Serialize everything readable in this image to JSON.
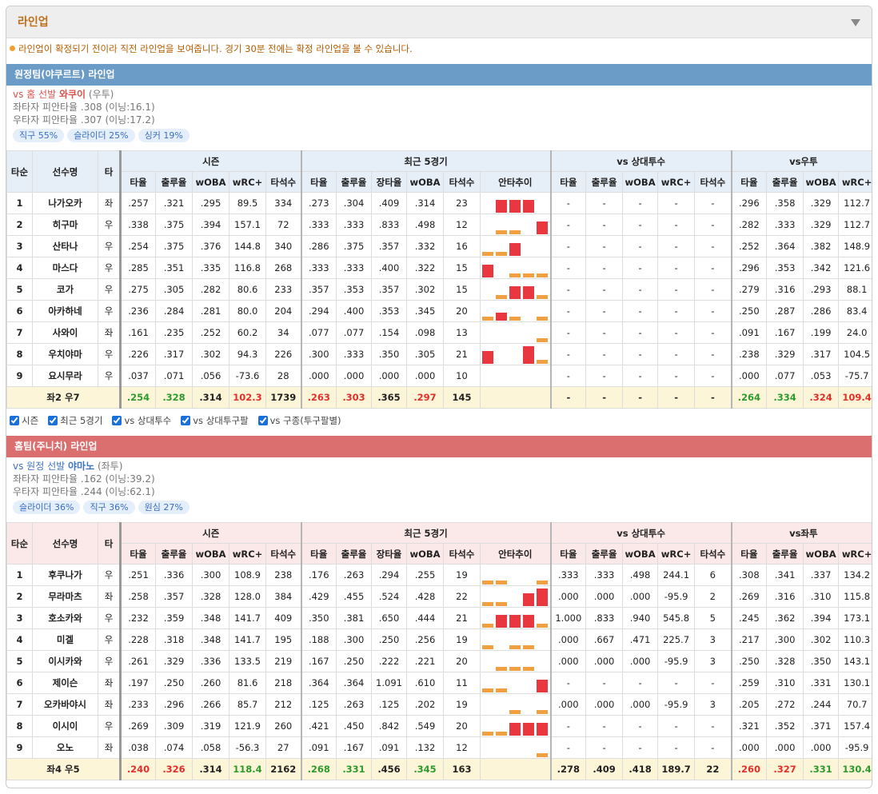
{
  "header": {
    "title": "라인업"
  },
  "notice": "라인업이 확정되기 전이라 직전 라인업을 보여줍니다. 경기 30분 전에는 확정 라인업을 볼 수 있습니다.",
  "filters": [
    "시즌",
    "최근 5경기",
    "vs 상대투수",
    "vs 상대투구팔",
    "vs 구종(투구팔별)"
  ],
  "teams": [
    {
      "title": "원정팀(야쿠르트) 라인업",
      "bar_color": "#6b9bc7",
      "head_bg": "#e6eef7",
      "pitcher": {
        "prefix": "vs 홈 선발",
        "name": "와쿠이",
        "hand": "(우투)",
        "color": "#d9534f"
      },
      "stats": [
        "좌타자 피안타율 .308 (이닝:16.1)",
        "우타자 피안타율 .307 (이닝:17.2)"
      ],
      "pitches": [
        "직구 55%",
        "슬라이더 25%",
        "싱커 19%"
      ],
      "table": {
        "fixed_headers": [
          "타순",
          "선수명",
          "타"
        ],
        "groups": [
          "시즌",
          "최근 5경기",
          "vs 상대투수",
          "vs우투"
        ],
        "columns": [
          [
            "타율",
            "출루율",
            "wOBA",
            "wRC+",
            "타석수"
          ],
          [
            "타율",
            "출루율",
            "장타율",
            "wOBA",
            "타석수",
            "안타추이"
          ],
          [
            "타율",
            "출루율",
            "wOBA",
            "wRC+",
            "타석수"
          ],
          [
            "타율",
            "출루율",
            "wOBA",
            "wRC+"
          ]
        ],
        "rows": [
          [
            "1",
            "나가오카",
            "좌",
            ".257",
            ".321",
            ".295",
            "89.5",
            "334",
            ".273",
            ".304",
            ".409",
            ".314",
            "23",
            "-",
            "-",
            "-",
            "-",
            "-",
            ".296",
            ".358",
            ".329",
            "112.7"
          ],
          [
            "2",
            "히구마",
            "우",
            ".338",
            ".375",
            ".394",
            "157.1",
            "72",
            ".333",
            ".333",
            ".833",
            ".498",
            "12",
            "-",
            "-",
            "-",
            "-",
            "-",
            ".282",
            ".333",
            ".329",
            "112.7"
          ],
          [
            "3",
            "산타나",
            "우",
            ".254",
            ".375",
            ".376",
            "144.8",
            "340",
            ".286",
            ".375",
            ".357",
            ".332",
            "16",
            "-",
            "-",
            "-",
            "-",
            "-",
            ".252",
            ".364",
            ".382",
            "148.9"
          ],
          [
            "4",
            "마스다",
            "우",
            ".285",
            ".351",
            ".335",
            "116.8",
            "268",
            ".333",
            ".333",
            ".400",
            ".322",
            "15",
            "-",
            "-",
            "-",
            "-",
            "-",
            ".296",
            ".353",
            ".342",
            "121.6"
          ],
          [
            "5",
            "코가",
            "우",
            ".275",
            ".305",
            ".282",
            "80.6",
            "233",
            ".357",
            ".353",
            ".357",
            ".302",
            "15",
            "-",
            "-",
            "-",
            "-",
            "-",
            ".279",
            ".316",
            ".293",
            "88.1"
          ],
          [
            "6",
            "아카하네",
            "우",
            ".236",
            ".284",
            ".281",
            "80.0",
            "204",
            ".294",
            ".400",
            ".353",
            ".345",
            "20",
            "-",
            "-",
            "-",
            "-",
            "-",
            ".250",
            ".287",
            ".286",
            "83.4"
          ],
          [
            "7",
            "사와이",
            "좌",
            ".161",
            ".235",
            ".252",
            "60.2",
            "34",
            ".077",
            ".077",
            ".154",
            ".098",
            "13",
            "-",
            "-",
            "-",
            "-",
            "-",
            ".091",
            ".167",
            ".199",
            "24.0"
          ],
          [
            "8",
            "우치야마",
            "우",
            ".226",
            ".317",
            ".302",
            "94.3",
            "226",
            ".300",
            ".333",
            ".350",
            ".305",
            "21",
            "-",
            "-",
            "-",
            "-",
            "-",
            ".238",
            ".329",
            ".317",
            "104.5"
          ],
          [
            "9",
            "요시무라",
            "우",
            ".037",
            ".071",
            ".056",
            "-73.6",
            "28",
            ".000",
            ".000",
            ".000",
            ".000",
            "10",
            "-",
            "-",
            "-",
            "-",
            "-",
            ".000",
            ".077",
            ".053",
            "-75.7"
          ]
        ],
        "trend": [
          [
            null,
            2,
            2,
            2,
            null
          ],
          [
            null,
            0,
            0,
            null,
            2
          ],
          [
            0,
            0,
            2,
            null,
            null
          ],
          [
            2,
            null,
            0,
            0,
            0
          ],
          [
            null,
            0,
            2,
            2,
            0
          ],
          [
            0,
            1,
            0,
            null,
            0
          ],
          [
            null,
            null,
            null,
            null,
            0
          ],
          [
            2,
            null,
            null,
            3,
            0
          ],
          [
            null,
            null,
            null,
            null,
            null
          ]
        ],
        "total": {
          "label": "좌2 우7",
          "values": [
            ".254",
            ".328",
            ".314",
            "102.3",
            "1739",
            ".263",
            ".303",
            ".365",
            ".297",
            "145",
            "-",
            "-",
            "-",
            "-",
            "-",
            ".264",
            ".334",
            ".324",
            "109.4"
          ],
          "colors": [
            "#2e9a2e",
            "#2e9a2e",
            "#222222",
            "#e0302c",
            "#222222",
            "#e0302c",
            "#e0302c",
            "#222222",
            "#e0302c",
            "#222222",
            "#222222",
            "#222222",
            "#222222",
            "#222222",
            "#222222",
            "#2e9a2e",
            "#2e9a2e",
            "#e0302c",
            "#e0302c"
          ]
        }
      }
    },
    {
      "title": "홈팀(주니치) 라인업",
      "bar_color": "#db6f6f",
      "head_bg": "#fbe8e8",
      "pitcher": {
        "prefix": "vs 원정 선발",
        "name": "야마노",
        "hand": "(좌투)",
        "color": "#3f74c4"
      },
      "stats": [
        "좌타자 피안타율 .162 (이닝:39.2)",
        "우타자 피안타율 .244 (이닝:62.1)"
      ],
      "pitches": [
        "슬라이더 36%",
        "직구 36%",
        "원심 27%"
      ],
      "table": {
        "fixed_headers": [
          "타순",
          "선수명",
          "타"
        ],
        "groups": [
          "시즌",
          "최근 5경기",
          "vs 상대투수",
          "vs좌투"
        ],
        "columns": [
          [
            "타율",
            "출루율",
            "wOBA",
            "wRC+",
            "타석수"
          ],
          [
            "타율",
            "출루율",
            "장타율",
            "wOBA",
            "타석수",
            "안타추이"
          ],
          [
            "타율",
            "출루율",
            "wOBA",
            "wRC+",
            "타석수"
          ],
          [
            "타율",
            "출루율",
            "wOBA",
            "wRC+"
          ]
        ],
        "rows": [
          [
            "1",
            "후쿠나가",
            "우",
            ".251",
            ".336",
            ".300",
            "108.9",
            "238",
            ".176",
            ".263",
            ".294",
            ".255",
            "19",
            ".333",
            ".333",
            ".498",
            "244.1",
            "6",
            ".308",
            ".341",
            ".337",
            "134.2"
          ],
          [
            "2",
            "무라마츠",
            "좌",
            ".258",
            ".357",
            ".328",
            "128.0",
            "384",
            ".429",
            ".455",
            ".524",
            ".428",
            "22",
            ".000",
            ".000",
            ".000",
            "-95.9",
            "2",
            ".269",
            ".316",
            ".310",
            "115.8"
          ],
          [
            "3",
            "호소카와",
            "우",
            ".232",
            ".359",
            ".348",
            "141.7",
            "409",
            ".350",
            ".381",
            ".650",
            ".444",
            "21",
            "1.000",
            ".833",
            ".940",
            "545.8",
            "5",
            ".245",
            ".362",
            ".394",
            "173.1"
          ],
          [
            "4",
            "미겔",
            "우",
            ".228",
            ".318",
            ".348",
            "141.7",
            "195",
            ".188",
            ".300",
            ".250",
            ".256",
            "19",
            ".000",
            ".667",
            ".471",
            "225.7",
            "3",
            ".217",
            ".300",
            ".302",
            "110.3"
          ],
          [
            "5",
            "이시카와",
            "우",
            ".261",
            ".329",
            ".336",
            "133.5",
            "219",
            ".167",
            ".250",
            ".222",
            ".221",
            "20",
            ".000",
            ".000",
            ".000",
            "-95.9",
            "3",
            ".250",
            ".328",
            ".350",
            "143.1"
          ],
          [
            "6",
            "제이슨",
            "좌",
            ".197",
            ".250",
            ".260",
            "81.6",
            "218",
            ".364",
            ".364",
            "1.091",
            ".610",
            "11",
            "-",
            "-",
            "-",
            "-",
            "-",
            ".259",
            ".310",
            ".331",
            "130.1"
          ],
          [
            "7",
            "오카바야시",
            "좌",
            ".233",
            ".296",
            ".266",
            "85.7",
            "212",
            ".125",
            ".263",
            ".125",
            ".202",
            "19",
            ".000",
            ".000",
            ".000",
            "-95.9",
            "3",
            ".205",
            ".272",
            ".244",
            "70.7"
          ],
          [
            "8",
            "이시이",
            "우",
            ".269",
            ".309",
            ".319",
            "121.9",
            "260",
            ".421",
            ".450",
            ".842",
            ".549",
            "20",
            "-",
            "-",
            "-",
            "-",
            "-",
            ".321",
            ".352",
            ".371",
            "157.4"
          ],
          [
            "9",
            "오노",
            "좌",
            ".038",
            ".074",
            ".058",
            "-56.3",
            "27",
            ".091",
            ".167",
            ".091",
            ".132",
            "12",
            "-",
            "-",
            "-",
            "-",
            "-",
            ".000",
            ".000",
            ".000",
            "-95.9"
          ]
        ],
        "trend": [
          [
            0,
            0,
            null,
            null,
            0
          ],
          [
            0,
            0,
            null,
            2,
            3
          ],
          [
            0,
            2,
            2,
            2,
            0
          ],
          [
            0,
            null,
            0,
            0,
            null
          ],
          [
            null,
            0,
            0,
            0,
            null
          ],
          [
            0,
            0,
            null,
            null,
            2
          ],
          [
            null,
            null,
            0,
            null,
            0
          ],
          [
            0,
            0,
            2,
            2,
            2
          ],
          [
            null,
            null,
            null,
            null,
            0
          ]
        ],
        "total": {
          "label": "좌4 우5",
          "values": [
            ".240",
            ".326",
            ".314",
            "118.4",
            "2162",
            ".268",
            ".331",
            ".456",
            ".345",
            "163",
            ".278",
            ".409",
            ".418",
            "189.7",
            "22",
            ".260",
            ".327",
            ".331",
            "130.4"
          ],
          "colors": [
            "#e0302c",
            "#e0302c",
            "#222222",
            "#2e9a2e",
            "#222222",
            "#2e9a2e",
            "#2e9a2e",
            "#222222",
            "#2e9a2e",
            "#222222",
            "#222222",
            "#222222",
            "#222222",
            "#222222",
            "#222222",
            "#e0302c",
            "#e0302c",
            "#2e9a2e",
            "#2e9a2e"
          ]
        }
      }
    }
  ]
}
